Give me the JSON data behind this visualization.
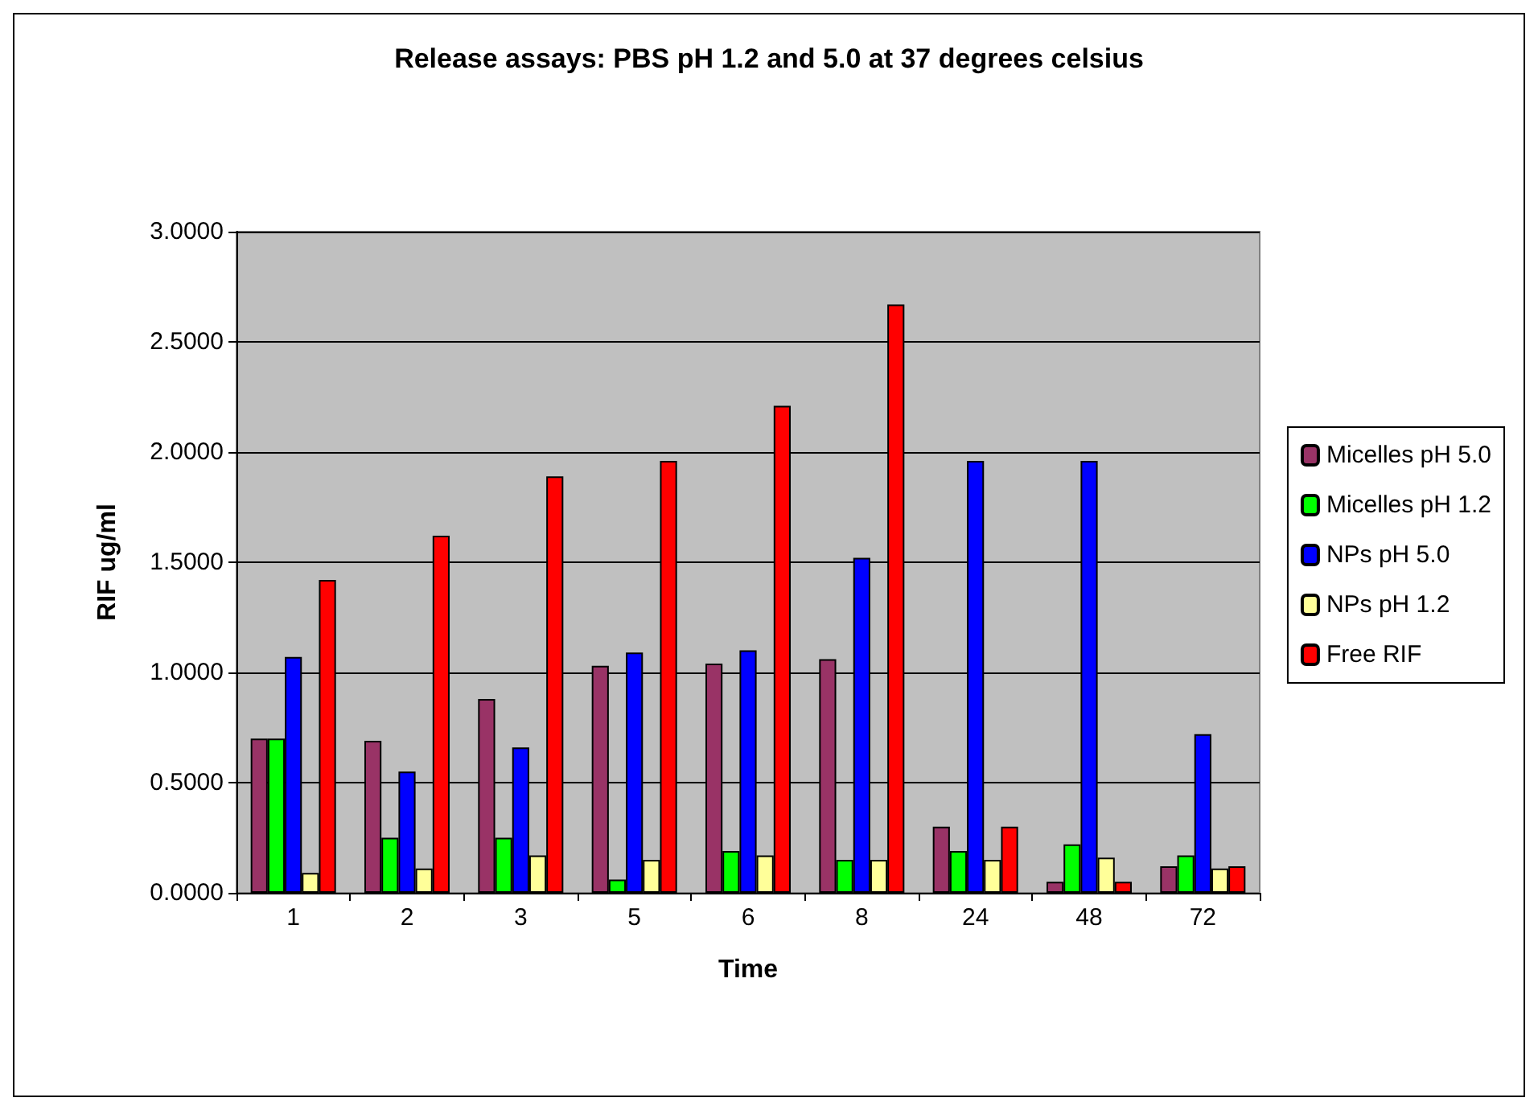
{
  "chart_data": {
    "type": "bar",
    "title": "Release assays: PBS pH 1.2 and 5.0 at 37 degrees celsius",
    "xlabel": "Time",
    "ylabel": "RIF ug/ml",
    "categories": [
      "1",
      "2",
      "3",
      "5",
      "6",
      "8",
      "24",
      "48",
      "72"
    ],
    "series": [
      {
        "name": "Micelles pH 5.0",
        "color": "#993366",
        "values": [
          0.7,
          0.69,
          0.88,
          1.03,
          1.04,
          1.06,
          0.3,
          0.05,
          0.12
        ]
      },
      {
        "name": "Micelles pH 1.2",
        "color": "#00ff00",
        "values": [
          0.7,
          0.25,
          0.25,
          0.06,
          0.19,
          0.15,
          0.19,
          0.22,
          0.17
        ]
      },
      {
        "name": "NPs pH 5.0",
        "color": "#0000ff",
        "values": [
          1.07,
          0.55,
          0.66,
          1.09,
          1.1,
          1.52,
          1.96,
          1.96,
          0.72
        ]
      },
      {
        "name": "NPs pH 1.2",
        "color": "#ffff99",
        "values": [
          0.09,
          0.11,
          0.17,
          0.15,
          0.17,
          0.15,
          0.15,
          0.16,
          0.11
        ]
      },
      {
        "name": "Free RIF",
        "color": "#ff0000",
        "values": [
          1.42,
          1.62,
          1.89,
          1.96,
          2.21,
          2.67,
          0.3,
          0.05,
          0.12
        ]
      }
    ],
    "ylim": [
      0,
      3
    ],
    "yticks": [
      {
        "value": 0,
        "label": "0.0000"
      },
      {
        "value": 0.5,
        "label": "0.5000"
      },
      {
        "value": 1,
        "label": "1.0000"
      },
      {
        "value": 1.5,
        "label": "1.5000"
      },
      {
        "value": 2,
        "label": "2.0000"
      },
      {
        "value": 2.5,
        "label": "2.5000"
      },
      {
        "value": 3,
        "label": "3.0000"
      }
    ],
    "grid": "y",
    "legend": "right"
  }
}
